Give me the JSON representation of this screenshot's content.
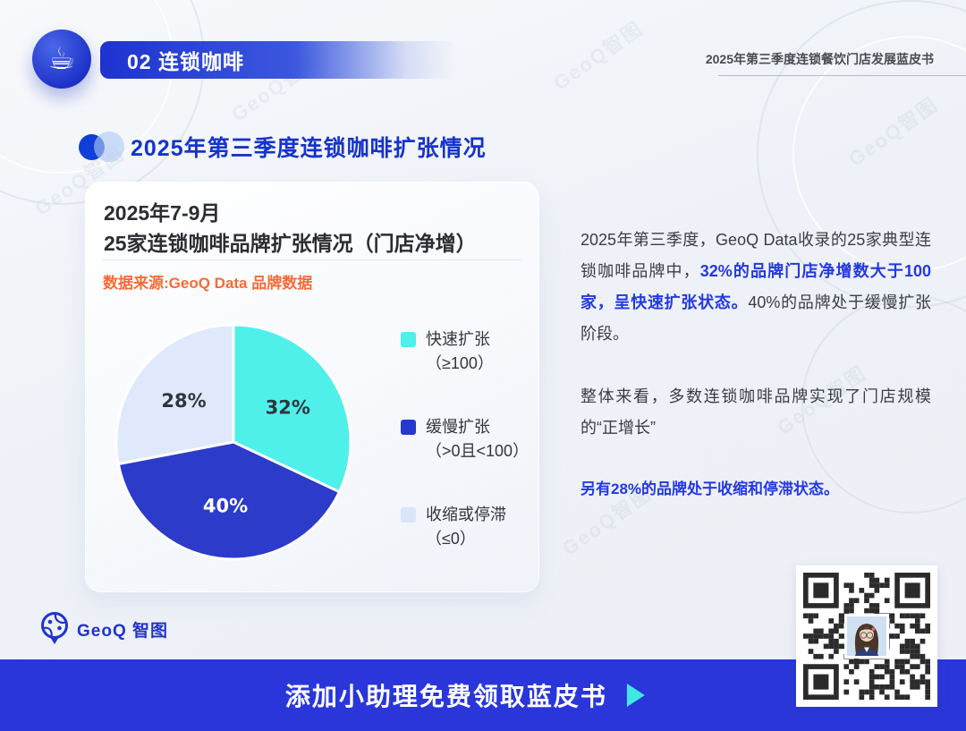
{
  "chart_data": {
    "type": "pie",
    "title": "2025年7-9月 25家连锁咖啡品牌扩张情况（门店净增）",
    "source": "数据来源:GeoQ Data 品牌数据",
    "categories": [
      "快速扩张（≥100）",
      "缓慢扩张（>0且<100）",
      "收缩或停滞（≤0）"
    ],
    "values": [
      32,
      40,
      28
    ],
    "unit": "%",
    "start_angle": "12点方向顺时针",
    "legend_position": "right",
    "slices": [
      {
        "label": "快速扩张（≥100）",
        "value": 32,
        "color": "#4ff0ea",
        "label_color": "#2f3640"
      },
      {
        "label": "缓慢扩张（>0且<100）",
        "value": 40,
        "color": "#2c3bc9",
        "label_color": "#ffffff"
      },
      {
        "label": "收缩或停滞（≤0）",
        "value": 28,
        "color": "#dfe9fb",
        "label_color": "#2f3640"
      }
    ]
  },
  "header": {
    "chapter_badge": "02 连锁咖啡",
    "chapter_icon": "coffee-cup-icon",
    "chapter_icon_glyph": "☕",
    "doc_title": "2025年第三季度连锁餐饮门店发展蓝皮书"
  },
  "section": {
    "title": "2025年第三季度连锁咖啡扩张情况"
  },
  "card": {
    "title_line1": "2025年7-9月",
    "title_line2": "25家连锁咖啡品牌扩张情况（门店净增）",
    "source": "数据来源:GeoQ Data 品牌数据",
    "legend": [
      {
        "name": "快速扩张",
        "range": "（≥100）",
        "color": "#4ff0ea"
      },
      {
        "name": "缓慢扩张",
        "range": "（>0且<100）",
        "color": "#2637cf"
      },
      {
        "name": "收缩或停滞",
        "range": "（≤0）",
        "color": "#d9e6fa"
      }
    ]
  },
  "analysis": {
    "p1_a": "2025年第三季度，GeoQ Data收录的25家典型连锁咖啡品牌中，",
    "p1_highlight": "32%的品牌门店净增数大于100家，呈快速扩张状态。",
    "p1_b": "40%的品牌处于缓慢扩张阶段。",
    "p2": "整体来看，多数连锁咖啡品牌实现了门店规模的“正增长”",
    "p3": "另有28%的品牌处于收缩和停滞状态。"
  },
  "footer": {
    "logo": "GeoQ 智图",
    "banner_cta": "添加小助理免费领取蓝皮书"
  },
  "watermark": "GeoQ智图",
  "colors": {
    "accent_blue": "#1633cd",
    "banner_blue": "#2a36da",
    "highlight_blue": "#2339e2",
    "orange": "#f96a35",
    "pie_cyan": "#4ff0ea",
    "pie_blue": "#2c3bc9",
    "pie_light": "#dfe9fb"
  }
}
